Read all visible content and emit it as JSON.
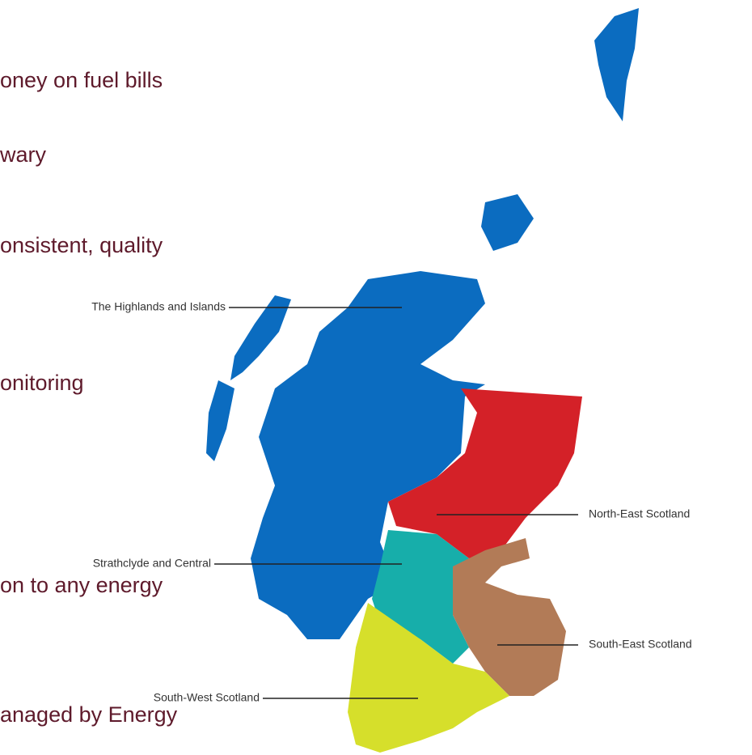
{
  "text_lines": [
    "oney on fuel bills",
    "wary",
    "onsistent, quality",
    "onitoring",
    "on to any energy",
    "anaged by Energy"
  ],
  "map": {
    "regions": [
      {
        "label": "The Highlands and Islands",
        "color": "#0b6cc0"
      },
      {
        "label": "North-East Scotland",
        "color": "#d42128"
      },
      {
        "label": "Strathclyde and Central",
        "color": "#17aeaa"
      },
      {
        "label": "South-East Scotland",
        "color": "#b27b57"
      },
      {
        "label": "South-West Scotland",
        "color": "#d6df2b"
      }
    ]
  }
}
